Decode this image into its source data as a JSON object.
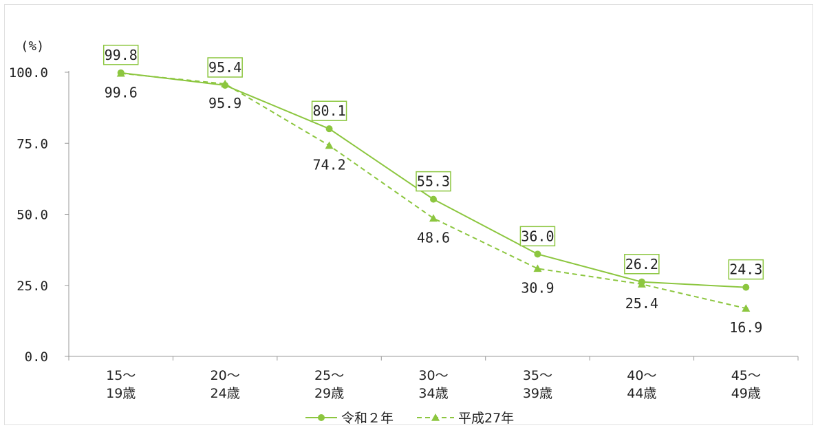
{
  "chart_data": {
    "type": "line",
    "title": "",
    "ylabel": "(%)",
    "xlabel": "",
    "ylim": [
      0,
      100
    ],
    "yticks": [
      "0.0",
      "25.0",
      "50.0",
      "75.0",
      "100.0"
    ],
    "categories": [
      [
        "15～",
        "19歳"
      ],
      [
        "20～",
        "24歳"
      ],
      [
        "25～",
        "29歳"
      ],
      [
        "30～",
        "34歳"
      ],
      [
        "35～",
        "39歳"
      ],
      [
        "40～",
        "44歳"
      ],
      [
        "45～",
        "49歳"
      ]
    ],
    "series": [
      {
        "name": "令和２年",
        "values": [
          99.8,
          95.4,
          80.1,
          55.3,
          36.0,
          26.2,
          24.3
        ],
        "labels": [
          "99.8",
          "95.4",
          "80.1",
          "55.3",
          "36.0",
          "26.2",
          "24.3"
        ],
        "style": "solid",
        "marker": "circle",
        "label_position": "above-boxed"
      },
      {
        "name": "平成27年",
        "values": [
          99.6,
          95.9,
          74.2,
          48.6,
          30.9,
          25.4,
          16.9
        ],
        "labels": [
          "99.6",
          "95.9",
          "74.2",
          "48.6",
          "30.9",
          "25.4",
          "16.9"
        ],
        "style": "dashed",
        "marker": "triangle",
        "label_position": "below"
      }
    ],
    "grid": false,
    "legend_position": "bottom-center",
    "colors": {
      "line": "#8cc63f",
      "axis": "#999999",
      "label_box": "#8cc63f"
    }
  }
}
